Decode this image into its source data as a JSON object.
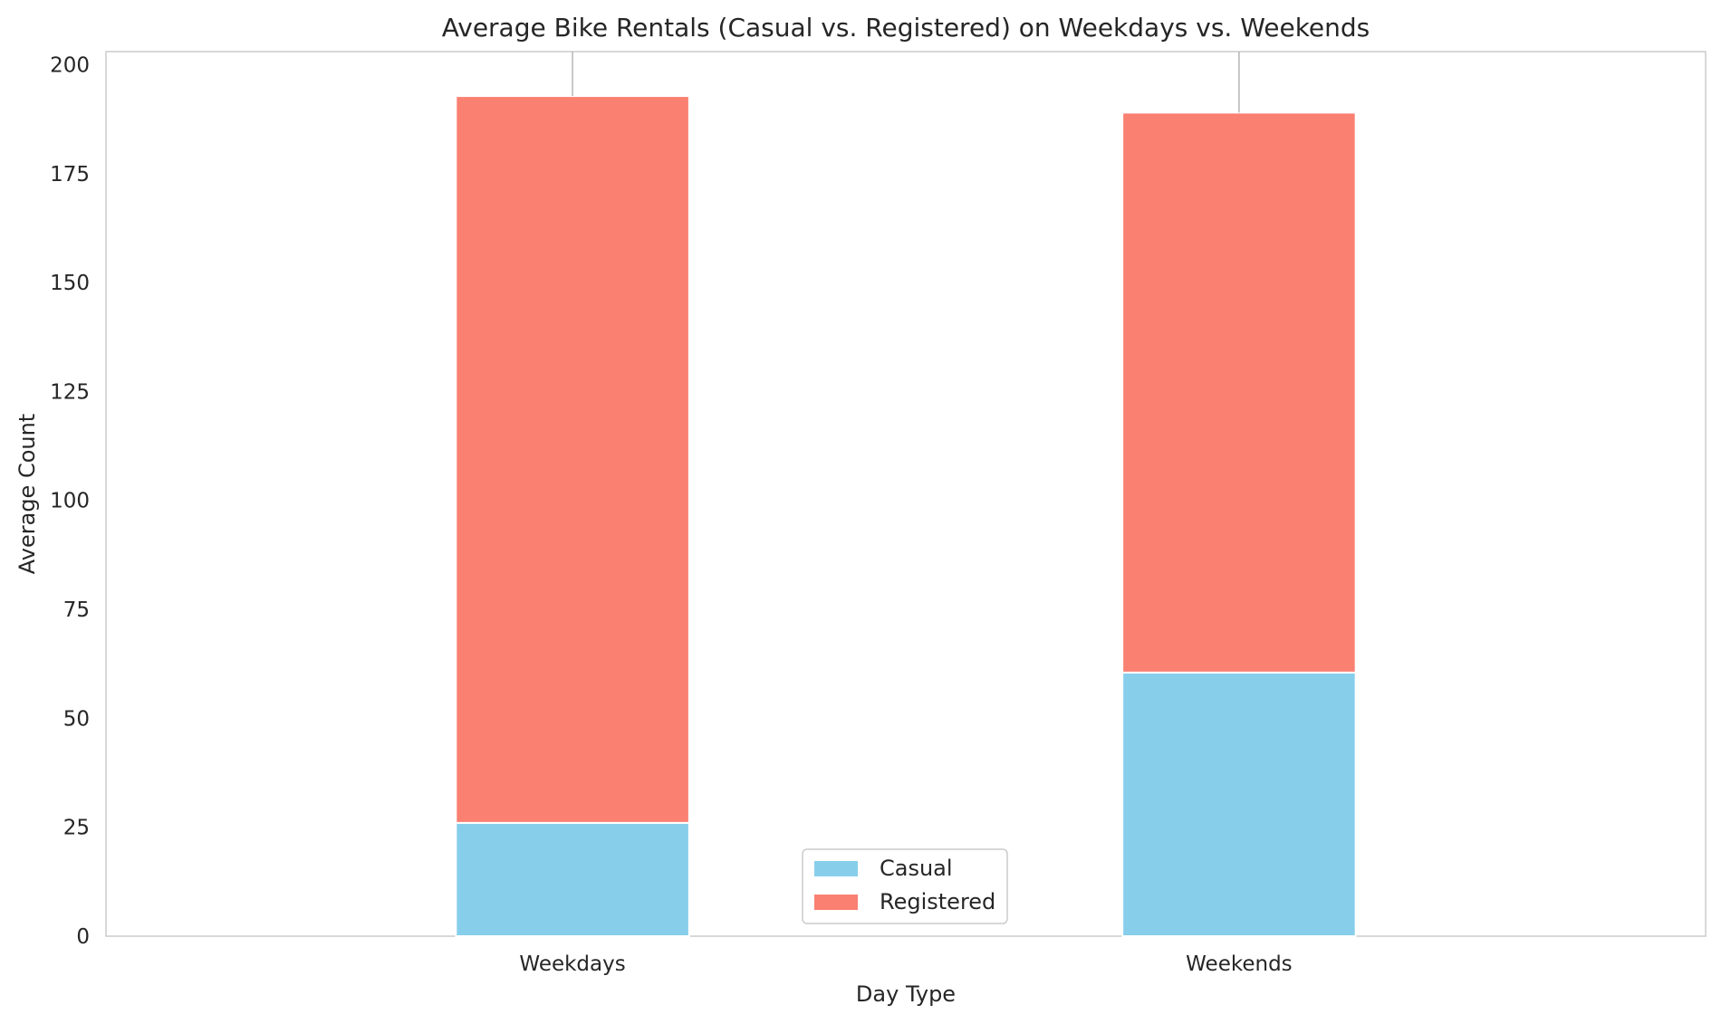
{
  "chart_data": {
    "type": "bar",
    "stacked": true,
    "title": "Average Bike Rentals (Casual vs. Registered) on Weekdays vs. Weekends",
    "xlabel": "Day Type",
    "ylabel": "Average Count",
    "categories": [
      "Weekdays",
      "Weekends"
    ],
    "series": [
      {
        "name": "Casual",
        "values": [
          26,
          60.5
        ],
        "color": "#87CEEB"
      },
      {
        "name": "Registered",
        "values": [
          166.8,
          128.5
        ],
        "color": "#FA8072"
      }
    ],
    "error_bar_tops": [
      203,
      203
    ],
    "ylim": [
      0,
      203
    ],
    "yticks": [
      "0",
      "25",
      "50",
      "75",
      "100",
      "125",
      "150",
      "175",
      "200"
    ],
    "grid": false,
    "legend_position": "bottom-center"
  }
}
